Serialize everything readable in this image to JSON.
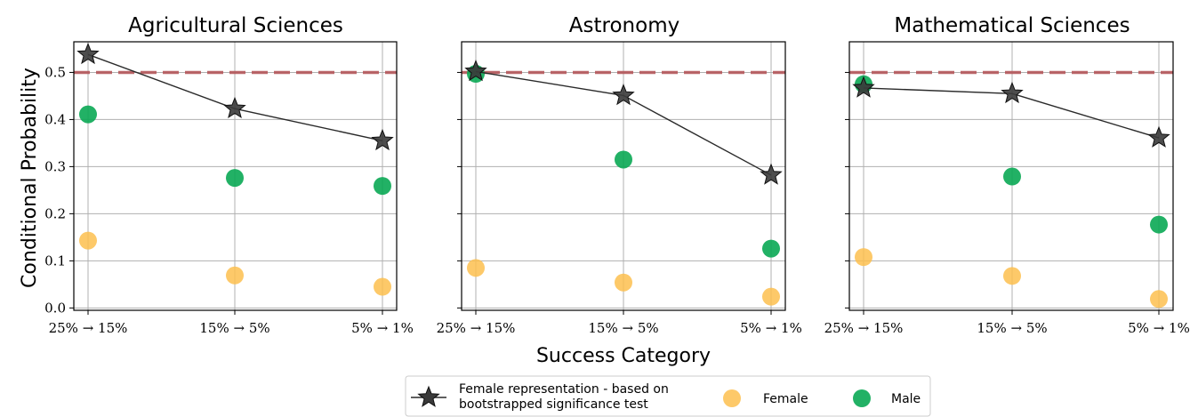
{
  "chart_data": [
    {
      "type": "scatter",
      "title": "Agricultural Sciences",
      "categories": [
        "25% → 15%",
        "15% → 5%",
        "5% → 1%"
      ],
      "reference_line": 0.5,
      "series": [
        {
          "name": "Female representation - based on bootstrapped significance test",
          "values": [
            0.538,
            0.423,
            0.355
          ]
        },
        {
          "name": "Female",
          "values": [
            0.143,
            0.069,
            0.045
          ]
        },
        {
          "name": "Male",
          "values": [
            0.411,
            0.276,
            0.259
          ]
        }
      ]
    },
    {
      "type": "scatter",
      "title": "Astronomy",
      "categories": [
        "25% → 15%",
        "15% → 5%",
        "5% → 1%"
      ],
      "reference_line": 0.5,
      "series": [
        {
          "name": "Female representation - based on bootstrapped significance test",
          "values": [
            0.502,
            0.451,
            0.282
          ]
        },
        {
          "name": "Female",
          "values": [
            0.085,
            0.054,
            0.024
          ]
        },
        {
          "name": "Male",
          "values": [
            0.497,
            0.315,
            0.126
          ]
        }
      ]
    },
    {
      "type": "scatter",
      "title": "Mathematical Sciences",
      "categories": [
        "25% → 15%",
        "15% → 5%",
        "5% → 1%"
      ],
      "reference_line": 0.5,
      "series": [
        {
          "name": "Female representation - based on bootstrapped significance test",
          "values": [
            0.467,
            0.455,
            0.361
          ]
        },
        {
          "name": "Female",
          "values": [
            0.108,
            0.068,
            0.019
          ]
        },
        {
          "name": "Male",
          "values": [
            0.475,
            0.279,
            0.177
          ]
        }
      ]
    }
  ],
  "ylabel": "Conditional Probability",
  "xlabel": "Success Category",
  "ylim": [
    -0.005,
    0.565
  ],
  "yticks": [
    "0.0",
    "0.1",
    "0.2",
    "0.3",
    "0.4",
    "0.5"
  ],
  "grid": true,
  "legend": {
    "placement": "bottom-center",
    "star_label_line1": "Female representation - based on",
    "star_label_line2": "bootstrapped significance test",
    "female_label": "Female",
    "male_label": "Male"
  },
  "colors": {
    "star": "#3a3a3a",
    "line": "#2a2a2a",
    "female": "#fdbf4f",
    "male": "#0aa854",
    "reference": "#b5585b",
    "grid": "#b0b0b0"
  }
}
